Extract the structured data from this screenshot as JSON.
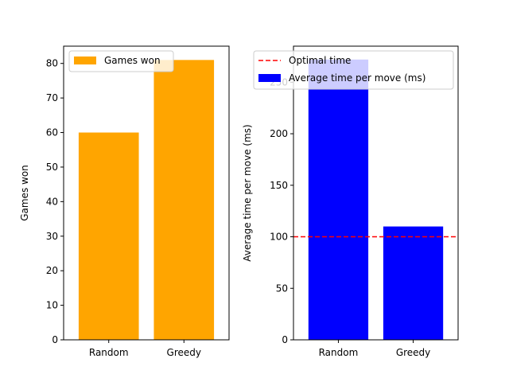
{
  "chart_data": [
    {
      "type": "bar",
      "categories": [
        "Random",
        "Greedy"
      ],
      "values": [
        60,
        81
      ],
      "bar_color": "#ffa500",
      "xlabel": "",
      "ylabel": "Games won",
      "ylim": [
        0,
        85
      ],
      "yticks": [
        0,
        10,
        20,
        30,
        40,
        50,
        60,
        70,
        80
      ],
      "legend": {
        "placement": "upper-left",
        "entries": [
          {
            "label": "Games won",
            "kind": "patch",
            "color": "#ffa500"
          }
        ]
      },
      "grid": false
    },
    {
      "type": "bar",
      "categories": [
        "Random",
        "Greedy"
      ],
      "values": [
        272,
        110
      ],
      "bar_color": "#0000ff",
      "xlabel": "",
      "ylabel": "Average time per move (ms)",
      "ylim": [
        0,
        285
      ],
      "yticks": [
        0,
        50,
        100,
        150,
        200,
        250
      ],
      "reference_line": {
        "value": 100,
        "color": "#ff0000",
        "style": "dashed",
        "label": "Optimal time"
      },
      "legend": {
        "placement": "upper-left",
        "entries": [
          {
            "label": "Optimal time",
            "kind": "line",
            "color": "#ff0000"
          },
          {
            "label": "Average time per move (ms)",
            "kind": "patch",
            "color": "#0000ff"
          }
        ]
      },
      "grid": false
    }
  ]
}
